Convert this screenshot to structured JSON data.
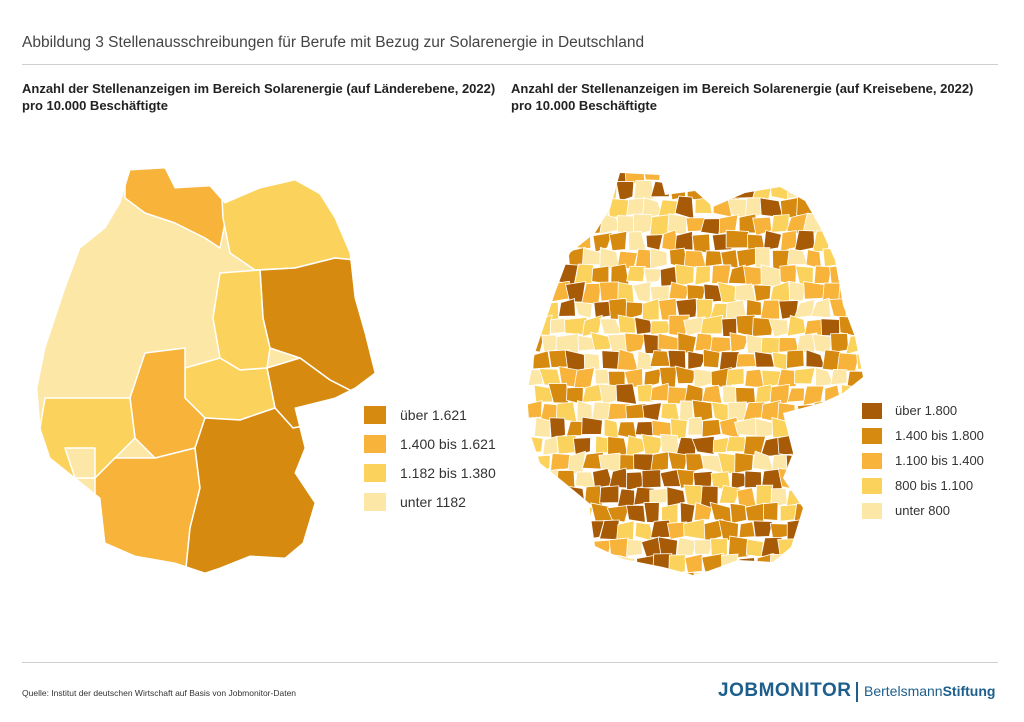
{
  "figure_title": "Abbildung 3 Stellenausschreibungen für Berufe mit Bezug zur Solarenergie in Deutschland",
  "left_panel": {
    "title_line1": "Anzahl der Stellenanzeigen im Bereich Solarenergie (auf Länderebene, 2022)",
    "title_line2": "pro 10.000 Beschäftigte",
    "legend": [
      {
        "label": "über 1.621",
        "color": "#d68a0f"
      },
      {
        "label": "1.400 bis 1.621",
        "color": "#f7b33a"
      },
      {
        "label": "1.182 bis 1.380",
        "color": "#fbd35c"
      },
      {
        "label": "unter 1182",
        "color": "#fde7a6"
      }
    ]
  },
  "right_panel": {
    "title_line1": "Anzahl der Stellenanzeigen im Bereich Solarenergie (auf Kreisebene, 2022)",
    "title_line2": "pro 10.000 Beschäftigte",
    "legend": [
      {
        "label": "über 1.800",
        "color": "#a85b07"
      },
      {
        "label": "1.400 bis 1.800",
        "color": "#d68a0f"
      },
      {
        "label": "1.100 bis 1.400",
        "color": "#f7b33a"
      },
      {
        "label": "800 bis 1.100",
        "color": "#fbd35c"
      },
      {
        "label": "unter 800",
        "color": "#fde7a6"
      }
    ]
  },
  "source": "Quelle: Institut der deutschen Wirtschaft auf Basis von Jobmonitor-Daten",
  "logos": {
    "jobmonitor_part1": "JOB",
    "jobmonitor_part2": "MONITOR",
    "bertelsmann_part1": "Bertelsmann",
    "bertelsmann_part2": "Stiftung"
  }
}
